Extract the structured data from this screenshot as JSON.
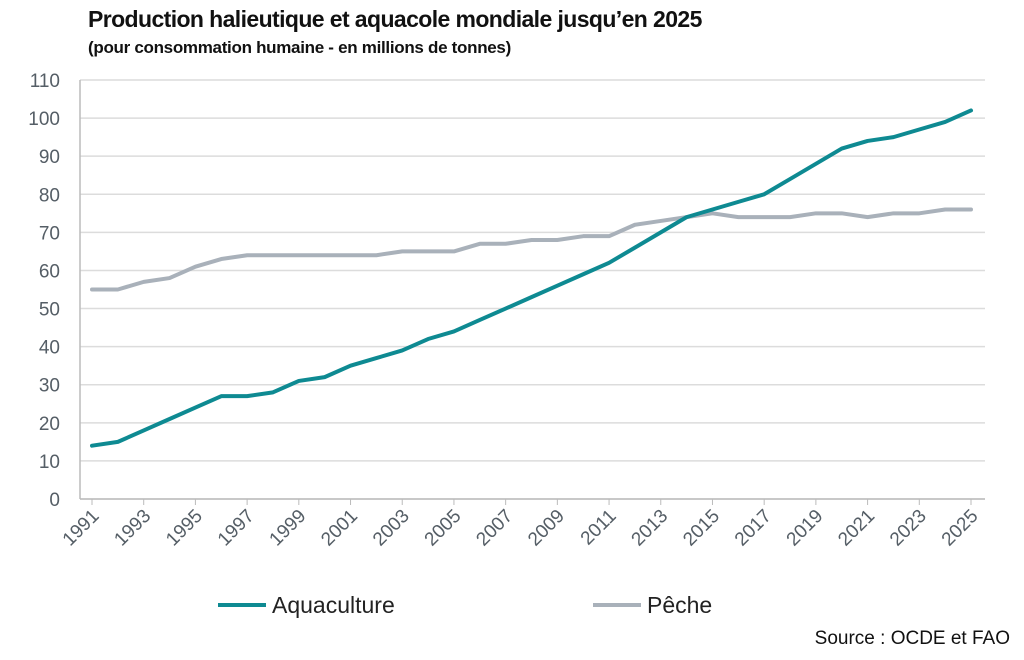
{
  "chart_data": {
    "type": "line",
    "title": "Production halieutique et aquacole mondiale jusqu’en 2025",
    "subtitle": "(pour consommation humaine - en millions de tonnes)",
    "source": "Source : OCDE et FAO",
    "x": [
      1991,
      1992,
      1993,
      1994,
      1995,
      1996,
      1997,
      1998,
      1999,
      2000,
      2001,
      2002,
      2003,
      2004,
      2005,
      2006,
      2007,
      2008,
      2009,
      2010,
      2011,
      2012,
      2013,
      2014,
      2015,
      2016,
      2017,
      2018,
      2019,
      2020,
      2021,
      2022,
      2023,
      2024,
      2025
    ],
    "x_tick_labels": [
      "1991",
      "1993",
      "1995",
      "1997",
      "1999",
      "2001",
      "2003",
      "2005",
      "2007",
      "2009",
      "2011",
      "2013",
      "2015",
      "2017",
      "2019",
      "2021",
      "2023",
      "2025"
    ],
    "y_tick_labels": [
      "0",
      "10",
      "20",
      "30",
      "40",
      "50",
      "60",
      "70",
      "80",
      "90",
      "100",
      "110"
    ],
    "ylim": [
      0,
      110
    ],
    "grid": "horizontal",
    "legend_position": "bottom",
    "series": [
      {
        "name": "Aquaculture",
        "color": "#0e8a92",
        "values": [
          14,
          15,
          18,
          21,
          24,
          27,
          27,
          28,
          31,
          32,
          35,
          37,
          39,
          42,
          44,
          47,
          50,
          53,
          56,
          59,
          62,
          66,
          70,
          74,
          76,
          78,
          80,
          84,
          88,
          92,
          94,
          95,
          97,
          99,
          102
        ]
      },
      {
        "name": "Pêche",
        "color": "#a9b1ba",
        "values": [
          55,
          55,
          57,
          58,
          61,
          63,
          64,
          64,
          64,
          64,
          64,
          64,
          65,
          65,
          65,
          67,
          67,
          68,
          68,
          69,
          69,
          72,
          73,
          74,
          75,
          74,
          74,
          74,
          75,
          75,
          74,
          75,
          75,
          76,
          76
        ]
      }
    ]
  }
}
